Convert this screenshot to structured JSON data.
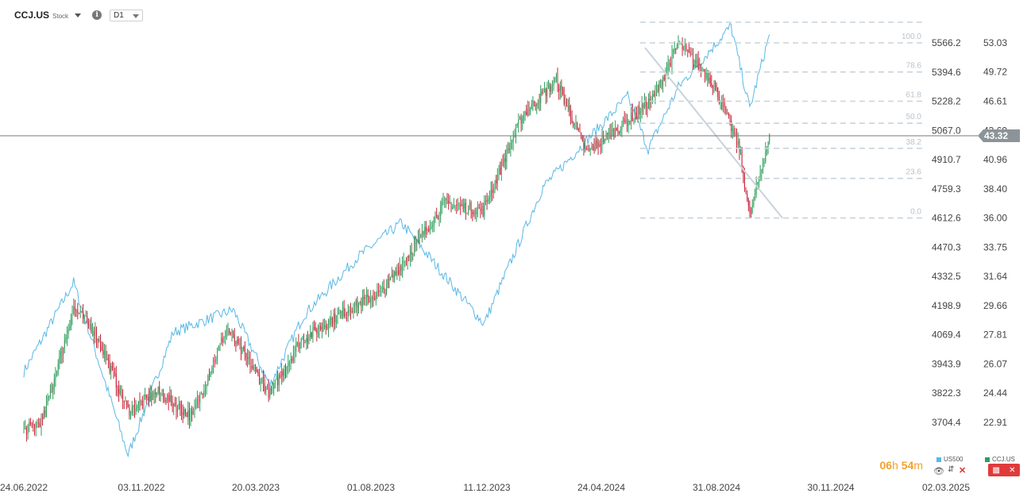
{
  "header": {
    "symbol": "CCJ.US",
    "symbol_type": "Stock",
    "timeframe": "D1"
  },
  "timer": {
    "hours": "06",
    "h_unit": "h",
    "minutes": "54",
    "m_unit": "m"
  },
  "legend": [
    {
      "name": "US500",
      "color": "#5ab8e6"
    },
    {
      "name": "CCJ.US",
      "color": "#2e9e5b"
    }
  ],
  "colors": {
    "line": "#5ab8e6",
    "up": "#2e9e5b",
    "down": "#c8243a",
    "price_tag": "#8c9499",
    "fib": "#c9d3db"
  },
  "chart_data": {
    "type": "line",
    "x_tick_labels": [
      "24.06.2022",
      "03.11.2022",
      "20.03.2023",
      "01.08.2023",
      "11.12.2023",
      "24.04.2024",
      "31.08.2024",
      "30.11.2024",
      "02.03.2025"
    ],
    "left_axis": {
      "labels": [
        "5566.2",
        "5394.6",
        "5228.2",
        "5067.0",
        "4910.7",
        "4759.3",
        "4612.6",
        "4470.3",
        "4332.5",
        "4198.9",
        "4069.4",
        "3943.9",
        "3822.3",
        "3704.4"
      ],
      "log_scale": true
    },
    "right_axis": {
      "labels": [
        "53.03",
        "49.72",
        "46.61",
        "43.69",
        "40.96",
        "38.40",
        "36.00",
        "33.75",
        "31.64",
        "29.66",
        "27.81",
        "26.07",
        "24.44",
        "22.91"
      ],
      "log_scale": true
    },
    "current_price": "43.32",
    "fibonacci_levels": [
      {
        "label": "100.0",
        "value": 53.03
      },
      {
        "label": "78.6",
        "value": 49.72
      },
      {
        "label": "61.8",
        "value": 46.61
      },
      {
        "label": "50.0",
        "value": 44.4
      },
      {
        "label": "38.2",
        "value": 42.0
      },
      {
        "label": "23.6",
        "value": 39.3
      },
      {
        "label": "0.0",
        "value": 36.0
      }
    ],
    "series": [
      {
        "name": "US500",
        "type": "line",
        "x": [
          "2022-06-24",
          "2022-08-16",
          "2022-10-13",
          "2022-11-30",
          "2023-02-02",
          "2023-03-13",
          "2023-04-18",
          "2023-06-15",
          "2023-07-31",
          "2023-10-27",
          "2023-12-29",
          "2024-03-28",
          "2024-04-19",
          "2024-05-21",
          "2024-07-16",
          "2024-08-05",
          "2024-08-26"
        ],
        "y": [
          3911,
          4305,
          3577,
          4080,
          4180,
          3855,
          4155,
          4425,
          4589,
          4117,
          4770,
          5254,
          4967,
          5308,
          5667,
          5186,
          5616
        ]
      },
      {
        "name": "CCJ.US",
        "type": "candlestick",
        "x": [
          "2022-06-24",
          "2022-07-14",
          "2022-08-16",
          "2022-09-08",
          "2022-10-13",
          "2022-11-14",
          "2022-12-20",
          "2023-01-26",
          "2023-03-13",
          "2023-04-14",
          "2023-05-31",
          "2023-07-11",
          "2023-09-15",
          "2023-10-26",
          "2023-12-07",
          "2024-01-12",
          "2024-02-13",
          "2024-03-26",
          "2024-04-25",
          "2024-05-21",
          "2024-06-24",
          "2024-07-02",
          "2024-07-25",
          "2024-08-05",
          "2024-08-26"
        ],
        "y": [
          22.5,
          23.0,
          29.5,
          28.0,
          23.5,
          24.5,
          23.2,
          28.2,
          24.4,
          27.4,
          29.3,
          30.6,
          37.2,
          36.6,
          45.2,
          48.8,
          41.6,
          44.5,
          47.0,
          53.0,
          49.0,
          47.4,
          42.0,
          36.1,
          43.3
        ]
      }
    ],
    "grid": false
  }
}
